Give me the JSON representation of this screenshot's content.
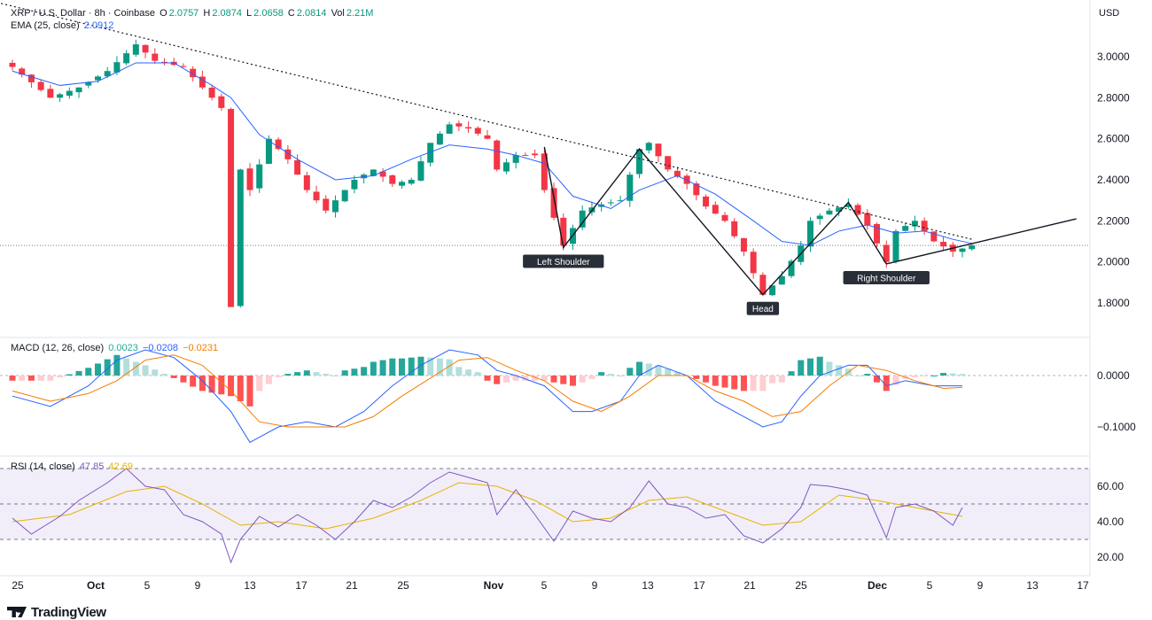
{
  "header": {
    "symbol": "XRP / U.S. Dollar · 8h · Coinbase",
    "o_label": "O",
    "o_value": "2.0757",
    "h_label": "H",
    "h_value": "2.0874",
    "l_label": "L",
    "l_value": "2.0658",
    "c_label": "C",
    "c_value": "2.0814",
    "vol_label": "Vol",
    "vol_value": "2.21M",
    "currency": "USD"
  },
  "indicators": {
    "ema_label": "EMA (25, close)",
    "ema_value": "2.0912",
    "macd_label": "MACD (12, 26, close)",
    "macd_hist": "0.0023",
    "macd_line": "−0.0208",
    "macd_signal": "−0.0231",
    "rsi_label": "RSI (14, close)",
    "rsi_value": "47.85",
    "rsi_ma": "42.69"
  },
  "branding": {
    "logo_text": "TradingView"
  },
  "colors": {
    "up": "#089981",
    "down": "#f23645",
    "ema": "#2962ff",
    "macd": "#2962ff",
    "signal": "#f57c00",
    "rsi": "#7e57c2",
    "rsi_ma": "#e6b400"
  },
  "chart_data": {
    "type": "candlestick",
    "price_axis": {
      "ticks": [
        "3.0000",
        "2.8000",
        "2.6000",
        "2.4000",
        "2.2000",
        "2.0000",
        "1.8000"
      ],
      "ylim": [
        1.75,
        3.25
      ]
    },
    "x_axis": {
      "ticks": [
        "25",
        "Oct",
        "5",
        "9",
        "13",
        "17",
        "21",
        "25",
        "Nov",
        "5",
        "9",
        "13",
        "17",
        "21",
        "25",
        "Dec",
        "5",
        "9",
        "13",
        "17"
      ]
    },
    "price_path": [
      [
        0,
        2.95
      ],
      [
        4,
        2.8
      ],
      [
        7,
        2.85
      ],
      [
        10,
        2.93
      ],
      [
        13,
        3.06
      ],
      [
        15,
        2.98
      ],
      [
        18,
        2.95
      ],
      [
        20,
        2.85
      ],
      [
        22,
        2.75
      ],
      [
        23,
        1.78
      ],
      [
        24,
        2.45
      ],
      [
        25,
        2.35
      ],
      [
        27,
        2.6
      ],
      [
        29,
        2.5
      ],
      [
        31,
        2.35
      ],
      [
        33,
        2.25
      ],
      [
        36,
        2.4
      ],
      [
        38,
        2.45
      ],
      [
        40,
        2.38
      ],
      [
        42,
        2.4
      ],
      [
        44,
        2.58
      ],
      [
        46,
        2.67
      ],
      [
        48,
        2.65
      ],
      [
        50,
        2.6
      ],
      [
        51,
        2.45
      ],
      [
        53,
        2.52
      ],
      [
        55,
        2.52
      ],
      [
        56,
        2.35
      ],
      [
        58,
        2.08
      ],
      [
        60,
        2.25
      ],
      [
        62,
        2.28
      ],
      [
        64,
        2.3
      ],
      [
        66,
        2.55
      ],
      [
        67,
        2.58
      ],
      [
        69,
        2.45
      ],
      [
        71,
        2.38
      ],
      [
        73,
        2.27
      ],
      [
        75,
        2.2
      ],
      [
        77,
        2.05
      ],
      [
        79,
        1.84
      ],
      [
        81,
        1.93
      ],
      [
        83,
        2.08
      ],
      [
        84,
        2.2
      ],
      [
        86,
        2.25
      ],
      [
        88,
        2.28
      ],
      [
        90,
        2.18
      ],
      [
        92,
        2.0
      ],
      [
        93,
        2.15
      ],
      [
        95,
        2.2
      ],
      [
        97,
        2.1
      ],
      [
        99,
        2.05
      ],
      [
        101,
        2.08
      ]
    ],
    "ema_path": [
      [
        0,
        2.93
      ],
      [
        5,
        2.86
      ],
      [
        9,
        2.88
      ],
      [
        13,
        2.97
      ],
      [
        17,
        2.97
      ],
      [
        21,
        2.86
      ],
      [
        23,
        2.8
      ],
      [
        26,
        2.62
      ],
      [
        30,
        2.5
      ],
      [
        34,
        2.4
      ],
      [
        38,
        2.42
      ],
      [
        42,
        2.5
      ],
      [
        46,
        2.57
      ],
      [
        50,
        2.55
      ],
      [
        53,
        2.52
      ],
      [
        56,
        2.48
      ],
      [
        59,
        2.32
      ],
      [
        63,
        2.26
      ],
      [
        66,
        2.35
      ],
      [
        70,
        2.42
      ],
      [
        74,
        2.33
      ],
      [
        78,
        2.2
      ],
      [
        81,
        2.1
      ],
      [
        84,
        2.08
      ],
      [
        87,
        2.15
      ],
      [
        90,
        2.18
      ],
      [
        93,
        2.14
      ],
      [
        96,
        2.15
      ],
      [
        99,
        2.11
      ],
      [
        101,
        2.09
      ]
    ],
    "patterns": {
      "trendline": {
        "from": [
          -3,
          3.28
        ],
        "to": [
          101,
          2.11
        ],
        "style": "dotted"
      },
      "neckline": {
        "from": [
          92,
          1.99
        ],
        "to": [
          112,
          2.21
        ]
      },
      "zigzag": [
        [
          56,
          2.56
        ],
        [
          58,
          2.07
        ],
        [
          66,
          2.55
        ],
        [
          79,
          1.84
        ],
        [
          88,
          2.29
        ],
        [
          92,
          1.99
        ]
      ],
      "labels": [
        "Left Shoulder",
        "Head",
        "Right Shoulder"
      ],
      "label_points": [
        [
          58,
          2.07
        ],
        [
          79,
          1.84
        ],
        [
          92,
          1.99
        ]
      ],
      "current_price": 2.08
    },
    "macd": {
      "ticks": [
        "0.0000",
        "−0.1000"
      ],
      "ylim": [
        -0.14,
        0.06
      ],
      "line": [
        [
          0,
          -0.04
        ],
        [
          4,
          -0.06
        ],
        [
          8,
          -0.02
        ],
        [
          11,
          0.03
        ],
        [
          14,
          0.05
        ],
        [
          17,
          0.035
        ],
        [
          20,
          -0.01
        ],
        [
          23,
          -0.07
        ],
        [
          25,
          -0.13
        ],
        [
          28,
          -0.1
        ],
        [
          31,
          -0.09
        ],
        [
          34,
          -0.1
        ],
        [
          37,
          -0.07
        ],
        [
          40,
          -0.02
        ],
        [
          43,
          0.02
        ],
        [
          46,
          0.05
        ],
        [
          49,
          0.04
        ],
        [
          51,
          0.01
        ],
        [
          53,
          0.0
        ],
        [
          56,
          -0.02
        ],
        [
          59,
          -0.07
        ],
        [
          61,
          -0.07
        ],
        [
          64,
          -0.05
        ],
        [
          66,
          0.0
        ],
        [
          68,
          0.02
        ],
        [
          71,
          0.0
        ],
        [
          74,
          -0.05
        ],
        [
          77,
          -0.08
        ],
        [
          79,
          -0.1
        ],
        [
          81,
          -0.09
        ],
        [
          83,
          -0.04
        ],
        [
          85,
          0.0
        ],
        [
          88,
          0.02
        ],
        [
          90,
          0.02
        ],
        [
          92,
          -0.02
        ],
        [
          94,
          -0.01
        ],
        [
          97,
          -0.02
        ],
        [
          100,
          -0.02
        ]
      ],
      "signal": [
        [
          0,
          -0.03
        ],
        [
          4,
          -0.05
        ],
        [
          8,
          -0.035
        ],
        [
          11,
          -0.01
        ],
        [
          14,
          0.03
        ],
        [
          17,
          0.04
        ],
        [
          20,
          0.02
        ],
        [
          23,
          -0.03
        ],
        [
          26,
          -0.09
        ],
        [
          29,
          -0.1
        ],
        [
          32,
          -0.1
        ],
        [
          35,
          -0.1
        ],
        [
          38,
          -0.08
        ],
        [
          41,
          -0.04
        ],
        [
          44,
          -0.005
        ],
        [
          47,
          0.03
        ],
        [
          50,
          0.035
        ],
        [
          53,
          0.01
        ],
        [
          56,
          -0.01
        ],
        [
          59,
          -0.05
        ],
        [
          62,
          -0.07
        ],
        [
          65,
          -0.04
        ],
        [
          68,
          0.0
        ],
        [
          71,
          0.0
        ],
        [
          74,
          -0.03
        ],
        [
          77,
          -0.05
        ],
        [
          80,
          -0.08
        ],
        [
          83,
          -0.07
        ],
        [
          86,
          -0.02
        ],
        [
          89,
          0.02
        ],
        [
          92,
          0.01
        ],
        [
          95,
          -0.01
        ],
        [
          98,
          -0.025
        ],
        [
          100,
          -0.023
        ]
      ]
    },
    "rsi": {
      "ticks": [
        "60.00",
        "40.00",
        "20.00"
      ],
      "ylim": [
        12,
        73
      ],
      "bands": [
        70,
        50,
        30
      ],
      "line": [
        [
          0,
          42
        ],
        [
          2,
          33
        ],
        [
          5,
          43
        ],
        [
          7,
          52
        ],
        [
          10,
          62
        ],
        [
          12,
          70
        ],
        [
          14,
          60
        ],
        [
          16,
          58
        ],
        [
          18,
          44
        ],
        [
          20,
          40
        ],
        [
          22,
          33
        ],
        [
          23,
          17
        ],
        [
          24,
          30
        ],
        [
          26,
          43
        ],
        [
          28,
          37
        ],
        [
          30,
          44
        ],
        [
          32,
          38
        ],
        [
          34,
          30
        ],
        [
          36,
          40
        ],
        [
          38,
          52
        ],
        [
          40,
          48
        ],
        [
          42,
          54
        ],
        [
          44,
          62
        ],
        [
          46,
          68
        ],
        [
          48,
          65
        ],
        [
          50,
          62
        ],
        [
          51,
          44
        ],
        [
          53,
          58
        ],
        [
          55,
          44
        ],
        [
          57,
          29
        ],
        [
          59,
          46
        ],
        [
          61,
          42
        ],
        [
          63,
          40
        ],
        [
          65,
          48
        ],
        [
          67,
          63
        ],
        [
          69,
          50
        ],
        [
          71,
          48
        ],
        [
          73,
          42
        ],
        [
          75,
          44
        ],
        [
          77,
          32
        ],
        [
          79,
          28
        ],
        [
          81,
          36
        ],
        [
          83,
          48
        ],
        [
          84,
          61
        ],
        [
          86,
          60
        ],
        [
          88,
          58
        ],
        [
          90,
          55
        ],
        [
          92,
          31
        ],
        [
          93,
          48
        ],
        [
          95,
          50
        ],
        [
          97,
          46
        ],
        [
          99,
          38
        ],
        [
          100,
          48
        ]
      ],
      "ma": [
        [
          0,
          40
        ],
        [
          6,
          44
        ],
        [
          12,
          57
        ],
        [
          16,
          60
        ],
        [
          20,
          50
        ],
        [
          24,
          38
        ],
        [
          28,
          40
        ],
        [
          33,
          36
        ],
        [
          38,
          42
        ],
        [
          43,
          52
        ],
        [
          47,
          62
        ],
        [
          51,
          60
        ],
        [
          55,
          52
        ],
        [
          59,
          40
        ],
        [
          63,
          42
        ],
        [
          67,
          52
        ],
        [
          71,
          54
        ],
        [
          75,
          46
        ],
        [
          79,
          38
        ],
        [
          83,
          40
        ],
        [
          87,
          55
        ],
        [
          91,
          52
        ],
        [
          95,
          48
        ],
        [
          99,
          44
        ],
        [
          100,
          43
        ]
      ]
    }
  }
}
